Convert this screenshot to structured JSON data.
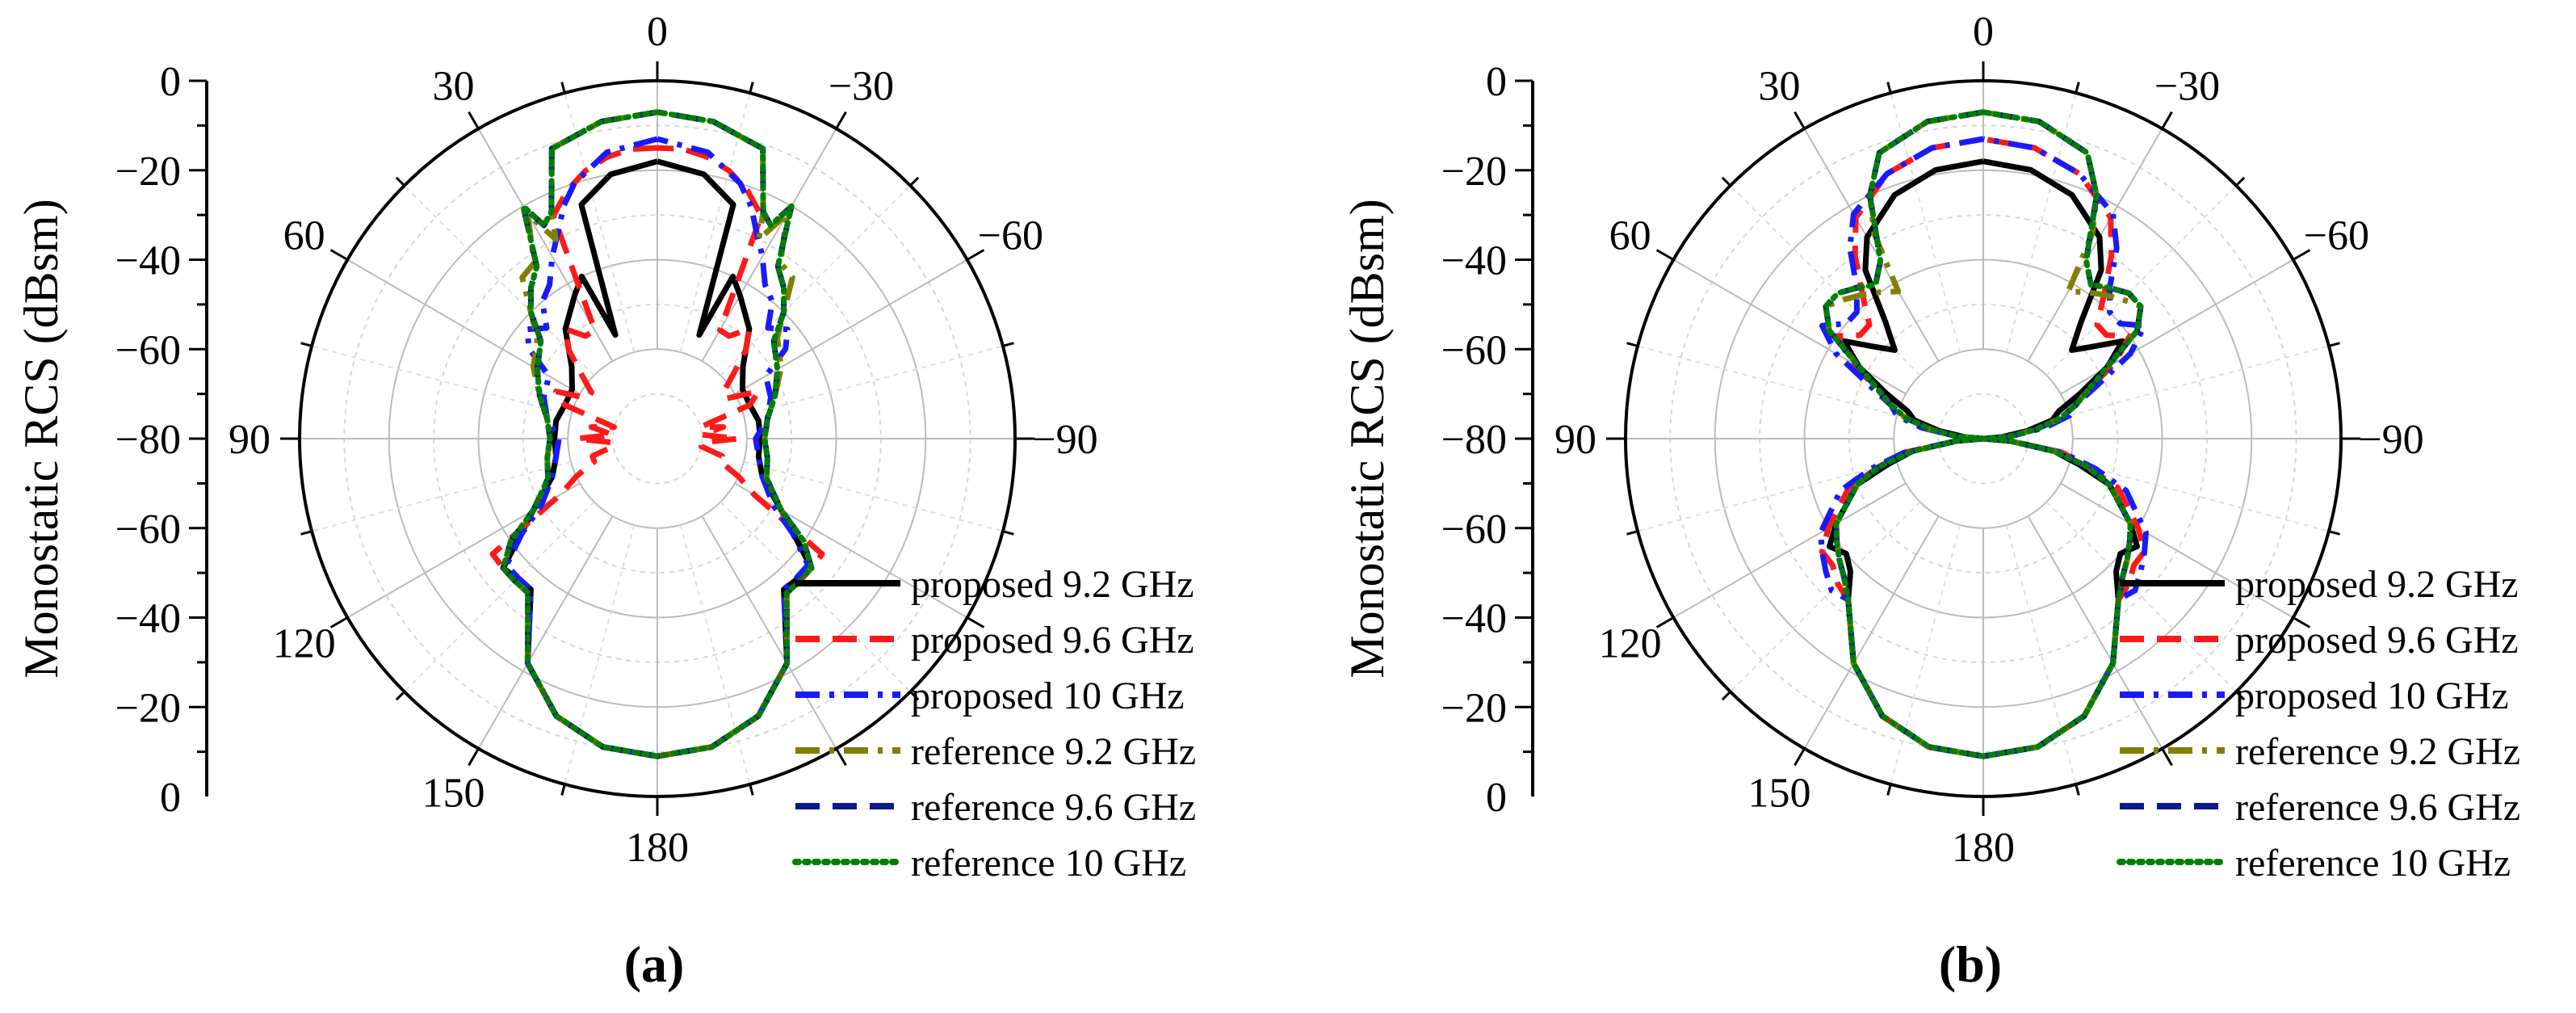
{
  "figure": {
    "panel_labels": [
      "(a)",
      "(b)"
    ]
  },
  "chart_data": [
    {
      "type": "polar-line",
      "panel": "(a)",
      "ylabel": "Monostatic RCS (dBsm)",
      "r_range": [
        -80,
        0
      ],
      "r_ticks_upper": [
        "0",
        "−20",
        "−40",
        "−60",
        "−80"
      ],
      "r_ticks_lower": [
        "−60",
        "−40",
        "−20",
        "0"
      ],
      "theta_labels": [
        {
          "deg": 0,
          "text": "0"
        },
        {
          "deg": 30,
          "text": "30"
        },
        {
          "deg": -30,
          "text": "−30"
        },
        {
          "deg": 60,
          "text": "60"
        },
        {
          "deg": -60,
          "text": "−60"
        },
        {
          "deg": 90,
          "text": "90"
        },
        {
          "deg": -90,
          "text": "−90"
        },
        {
          "deg": 120,
          "text": "120"
        },
        {
          "deg": 150,
          "text": "150"
        },
        {
          "deg": 180,
          "text": "180"
        }
      ],
      "legend": [
        "proposed 9.2 GHz",
        "proposed 9.6 GHz",
        "proposed 10 GHz",
        "reference 9.2 GHz",
        "reference 9.6 GHz",
        "reference 10 GHz"
      ],
      "series": [
        {
          "name": "proposed 9.2 GHz",
          "color": "#000000",
          "dash": "solid",
          "theta": [
            0,
            10,
            18,
            22,
            25,
            30,
            40,
            50,
            60,
            70,
            80,
            90,
            100,
            110,
            120,
            130,
            140,
            150,
            160,
            170,
            180
          ],
          "rcs": [
            -18,
            -20,
            -25,
            -55,
            -40,
            -43,
            -48,
            -55,
            -58,
            -58,
            -57,
            -57,
            -57,
            -55,
            -48,
            -35,
            -36,
            -22,
            -14,
            -10,
            -9
          ]
        },
        {
          "name": "proposed 9.6 GHz",
          "color": "#ff1a1a",
          "dash": "dash",
          "theta": [
            0,
            5,
            10,
            15,
            20,
            25,
            30,
            35,
            40,
            45,
            50,
            55,
            60,
            65,
            70,
            75,
            80,
            85,
            90,
            95,
            100,
            105,
            110,
            115,
            120,
            125,
            130,
            135,
            140,
            150,
            160,
            170,
            180
          ],
          "rcs": [
            -15,
            -15,
            -16,
            -18,
            -21,
            -25,
            -52,
            -52,
            -48,
            -52,
            -58,
            -62,
            -62,
            -55,
            -58,
            -70,
            -65,
            -70,
            -62,
            -70,
            -70,
            -65,
            -65,
            -60,
            -55,
            -35,
            -35,
            -35,
            -35,
            -22,
            -14,
            -10,
            -9
          ]
        },
        {
          "name": "proposed 10 GHz",
          "color": "#1a1aff",
          "dash": "dashdot",
          "theta": [
            0,
            10,
            18,
            22,
            25,
            30,
            35,
            40,
            45,
            50,
            55,
            60,
            70,
            80,
            90,
            100,
            110,
            120,
            125,
            130,
            135,
            140,
            150,
            160,
            170,
            180
          ],
          "rcs": [
            -13,
            -15,
            -20,
            -24,
            -28,
            -33,
            -38,
            -40,
            -45,
            -42,
            -45,
            -52,
            -53,
            -55,
            -58,
            -57,
            -55,
            -50,
            -43,
            -36,
            -36,
            -36,
            -22,
            -14,
            -10,
            -9
          ]
        },
        {
          "name": "reference 9.2 GHz",
          "color": "#808000",
          "dash": "dashdot",
          "theta": [
            0,
            10,
            20,
            25,
            27,
            30,
            35,
            40,
            45,
            50,
            60,
            70,
            80,
            90,
            100,
            110,
            120,
            125,
            130,
            135,
            140,
            150,
            160,
            170,
            180
          ],
          "rcs": [
            -7,
            -8,
            -11,
            -24,
            -30,
            -22,
            -32,
            -33,
            -40,
            -45,
            -48,
            -52,
            -55,
            -56,
            -55,
            -54,
            -48,
            -40,
            -35,
            -35,
            -35,
            -22,
            -14,
            -10,
            -9
          ]
        },
        {
          "name": "reference 9.6 GHz",
          "color": "#0a1a8c",
          "dash": "dash",
          "theta": [
            0,
            10,
            20,
            25,
            28,
            30,
            35,
            40,
            45,
            50,
            60,
            70,
            80,
            90,
            100,
            110,
            120,
            125,
            130,
            135,
            140,
            150,
            160,
            170,
            180
          ],
          "rcs": [
            -7,
            -8,
            -11,
            -24,
            -26,
            -20,
            -33,
            -36,
            -40,
            -46,
            -49,
            -52,
            -55,
            -56,
            -55,
            -54,
            -48,
            -40,
            -35,
            -35,
            -35,
            -22,
            -14,
            -10,
            -9
          ]
        },
        {
          "name": "reference 10 GHz",
          "color": "#008000",
          "dash": "dot",
          "theta": [
            0,
            10,
            20,
            25,
            28,
            30,
            35,
            40,
            45,
            50,
            60,
            70,
            80,
            90,
            100,
            110,
            120,
            125,
            130,
            135,
            140,
            150,
            160,
            170,
            180
          ],
          "rcs": [
            -7,
            -8,
            -11,
            -24,
            -26,
            -20,
            -33,
            -36,
            -40,
            -46,
            -49,
            -52,
            -55,
            -56,
            -55,
            -54,
            -48,
            -40,
            -35,
            -35,
            -35,
            -22,
            -14,
            -10,
            -9
          ]
        }
      ]
    },
    {
      "type": "polar-line",
      "panel": "(b)",
      "ylabel": "Monostatic RCS (dBsm)",
      "r_range": [
        -80,
        0
      ],
      "r_ticks_upper": [
        "0",
        "−20",
        "−40",
        "−60",
        "−80"
      ],
      "r_ticks_lower": [
        "−60",
        "−40",
        "−20",
        "0"
      ],
      "theta_labels": [
        {
          "deg": 0,
          "text": "0"
        },
        {
          "deg": 30,
          "text": "30"
        },
        {
          "deg": -30,
          "text": "−30"
        },
        {
          "deg": 60,
          "text": "60"
        },
        {
          "deg": -60,
          "text": "−60"
        },
        {
          "deg": 90,
          "text": "90"
        },
        {
          "deg": -90,
          "text": "−90"
        },
        {
          "deg": 120,
          "text": "120"
        },
        {
          "deg": 150,
          "text": "150"
        },
        {
          "deg": 180,
          "text": "180"
        }
      ],
      "legend": [
        "proposed 9.2 GHz",
        "proposed 9.6 GHz",
        "proposed 10 GHz",
        "reference 9.2 GHz",
        "reference 9.6 GHz",
        "reference 10 GHz"
      ],
      "series": [
        {
          "name": "proposed 9.2 GHz",
          "color": "#000000",
          "dash": "solid",
          "theta": [
            0,
            10,
            20,
            30,
            35,
            40,
            45,
            50,
            55,
            60,
            65,
            70,
            75,
            80,
            85,
            90,
            95,
            100,
            105,
            110,
            120,
            125,
            130,
            135,
            140,
            150,
            160,
            170,
            180
          ],
          "rcs": [
            -18,
            -19,
            -22,
            -28,
            -34,
            -46,
            -52,
            -48,
            -42,
            -48,
            -56,
            -62,
            -64,
            -70,
            -76,
            -80,
            -74,
            -64,
            -58,
            -50,
            -42,
            -38,
            -40,
            -38,
            -33,
            -22,
            -14,
            -10,
            -9
          ]
        },
        {
          "name": "proposed 9.6 GHz",
          "color": "#ff1a1a",
          "dash": "dash",
          "theta": [
            0,
            10,
            20,
            30,
            35,
            40,
            45,
            50,
            55,
            60,
            65,
            70,
            75,
            80,
            85,
            90,
            95,
            100,
            105,
            110,
            120,
            125,
            130,
            135,
            140,
            150,
            160,
            170,
            180
          ],
          "rcs": [
            -13,
            -14,
            -17,
            -23,
            -30,
            -38,
            -44,
            -44,
            -40,
            -46,
            -54,
            -58,
            -62,
            -68,
            -74,
            -80,
            -74,
            -62,
            -56,
            -48,
            -40,
            -36,
            -36,
            -34,
            -33,
            -22,
            -14,
            -10,
            -9
          ]
        },
        {
          "name": "proposed 10 GHz",
          "color": "#1a1aff",
          "dash": "dashdot",
          "theta": [
            0,
            10,
            20,
            30,
            35,
            40,
            45,
            50,
            55,
            60,
            65,
            70,
            75,
            80,
            85,
            90,
            95,
            100,
            105,
            110,
            120,
            125,
            130,
            135,
            140,
            150,
            160,
            170,
            180
          ],
          "rcs": [
            -13,
            -14,
            -17,
            -22,
            -28,
            -36,
            -40,
            -40,
            -36,
            -42,
            -52,
            -58,
            -60,
            -66,
            -74,
            -80,
            -74,
            -62,
            -54,
            -46,
            -38,
            -36,
            -34,
            -32,
            -33,
            -22,
            -14,
            -10,
            -9
          ]
        },
        {
          "name": "reference 9.2 GHz",
          "color": "#808000",
          "dash": "dashdot",
          "theta": [
            0,
            10,
            20,
            25,
            28,
            30,
            35,
            40,
            45,
            50,
            55,
            60,
            65,
            70,
            75,
            80,
            85,
            90,
            95,
            100,
            105,
            110,
            120,
            125,
            130,
            135,
            140,
            150,
            160,
            170,
            180
          ],
          "rcs": [
            -7,
            -8,
            -12,
            -20,
            -28,
            -42,
            -40,
            -38,
            -36,
            -34,
            -38,
            -48,
            -54,
            -58,
            -62,
            -68,
            -74,
            -80,
            -74,
            -64,
            -56,
            -50,
            -42,
            -40,
            -38,
            -36,
            -33,
            -22,
            -14,
            -10,
            -9
          ]
        },
        {
          "name": "reference 9.6 GHz",
          "color": "#0a1a8c",
          "dash": "dash",
          "theta": [
            0,
            10,
            20,
            25,
            30,
            35,
            40,
            45,
            50,
            55,
            60,
            65,
            70,
            75,
            80,
            85,
            90,
            95,
            100,
            105,
            110,
            120,
            125,
            130,
            135,
            140,
            150,
            160,
            170,
            180
          ],
          "rcs": [
            -7,
            -8,
            -12,
            -20,
            -34,
            -38,
            -36,
            -34,
            -34,
            -38,
            -48,
            -54,
            -58,
            -62,
            -68,
            -74,
            -80,
            -74,
            -64,
            -56,
            -50,
            -42,
            -40,
            -38,
            -36,
            -33,
            -22,
            -14,
            -10,
            -9
          ]
        },
        {
          "name": "reference 10 GHz",
          "color": "#008000",
          "dash": "dot",
          "theta": [
            0,
            10,
            20,
            25,
            30,
            35,
            40,
            45,
            50,
            55,
            60,
            65,
            70,
            75,
            80,
            85,
            90,
            95,
            100,
            105,
            110,
            120,
            125,
            130,
            135,
            140,
            150,
            160,
            170,
            180
          ],
          "rcs": [
            -7,
            -8,
            -12,
            -20,
            -34,
            -38,
            -36,
            -34,
            -34,
            -38,
            -48,
            -54,
            -58,
            -62,
            -68,
            -74,
            -80,
            -74,
            -64,
            -56,
            -50,
            -42,
            -40,
            -38,
            -36,
            -33,
            -22,
            -14,
            -10,
            -9
          ]
        }
      ]
    }
  ]
}
